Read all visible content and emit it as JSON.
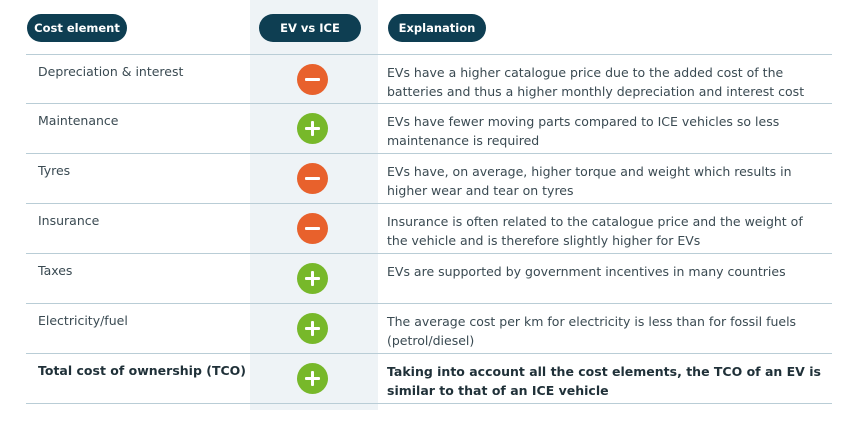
{
  "headers": {
    "cost_element": "Cost element",
    "ev_vs_ice": "EV vs ICE",
    "explanation": "Explanation"
  },
  "rows": [
    {
      "cost": "Depreciation & interest",
      "impact": "minus",
      "icon": "minus-circle-icon",
      "explanation": "EVs have a higher catalogue price due to the added cost of the batteries and thus a higher monthly depreciation and interest cost"
    },
    {
      "cost": "Maintenance",
      "impact": "plus",
      "icon": "plus-circle-icon",
      "explanation": "EVs have fewer moving parts compared to ICE vehicles so less maintenance is required"
    },
    {
      "cost": "Tyres",
      "impact": "minus",
      "icon": "minus-circle-icon",
      "explanation": "EVs have, on average, higher torque and weight which results in higher wear and tear on tyres"
    },
    {
      "cost": "Insurance",
      "impact": "minus",
      "icon": "minus-circle-icon",
      "explanation": "Insurance is often related to the catalogue price and the weight of the vehicle and is therefore slightly higher for EVs"
    },
    {
      "cost": "Taxes",
      "impact": "plus",
      "icon": "plus-circle-icon",
      "explanation": "EVs are supported by government incentives in many countries"
    },
    {
      "cost": "Electricity/fuel",
      "impact": "plus",
      "icon": "plus-circle-icon",
      "explanation": "The average cost per km for electricity is less than for fossil fuels (petrol/diesel)"
    },
    {
      "cost": "Total cost of ownership (TCO)",
      "impact": "plus",
      "icon": "plus-circle-icon",
      "explanation": "Taking into account all the cost elements, the TCO of an EV is similar to that of an ICE vehicle"
    }
  ],
  "colors": {
    "header_pill": "#0e3e52",
    "minus": "#e8612c",
    "plus": "#77b82a",
    "middle_band": "#eef3f6",
    "divider": "#b9cdd6"
  }
}
